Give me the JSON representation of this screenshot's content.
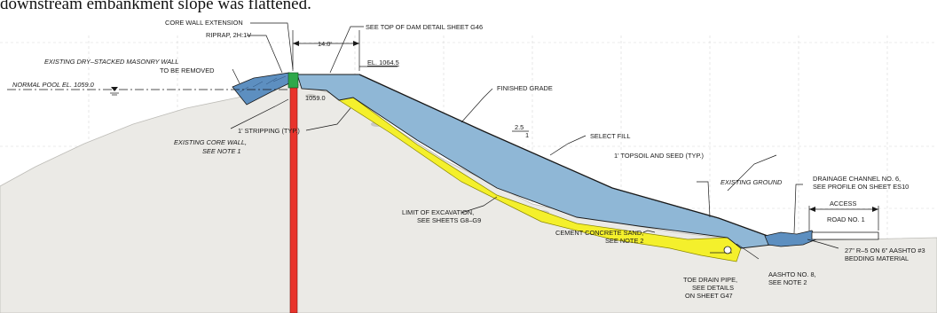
{
  "caption": "downstream embankment slope was flattened.",
  "labels": {
    "core_wall_extension": "CORE WALL EXTENSION",
    "riprap": "RIPRAP, 2H:1V",
    "see_top_of_dam": "SEE TOP OF DAM DETAIL SHEET G46",
    "crest_width": "14.0'",
    "el_crest": "EL. 1064.5",
    "existing_masonry_1": "EXISTING DRY–STACKED MASONRY WALL",
    "existing_masonry_2": "TO BE REMOVED",
    "normal_pool": "NORMAL POOL EL. 1059.0",
    "el_1059": "1059.0",
    "finished_grade": "FINISHED GRADE",
    "slope_top": "2.5",
    "slope_bottom": "1",
    "select_fill": "SELECT FILL",
    "existing_core_wall_1": "EXISTING CORE WALL,",
    "existing_core_wall_2": "SEE NOTE 1",
    "stripping": "1' STRIPPING (TYP.)",
    "topsoil": "1' TOPSOIL AND SEED (TYP.)",
    "existing_ground": "EXISTING GROUND",
    "drainage_1": "DRAINAGE CHANNEL NO. 6,",
    "drainage_2": "SEE PROFILE ON SHEET ES10",
    "access": "ACCESS",
    "road": "ROAD NO. 1",
    "limit_excavation_1": "LIMIT OF EXCAVATION,",
    "limit_excavation_2": "SEE SHEETS G8–G9",
    "cement_sand_1": "CEMENT CONCRETE SAND,",
    "cement_sand_2": "SEE NOTE 2",
    "bedding_1": "27\" R–5 ON 6\" AASHTO #3",
    "bedding_2": "BEDDING MATERIAL",
    "aashto_1": "AASHTO NO. 8,",
    "aashto_2": "SEE NOTE 2",
    "toe_drain_1": "TOE DRAIN PIPE,",
    "toe_drain_2": "SEE DETAILS",
    "toe_drain_3": "ON SHEET G47"
  },
  "colors": {
    "ground": "#ebeae6",
    "select_fill": "#8fb7d6",
    "sand": "#f4f02c",
    "core_wall": "#e8332b",
    "crest_block": "#2fa84a",
    "riprap": "#5d8fc0",
    "line": "#1a1a1a"
  }
}
